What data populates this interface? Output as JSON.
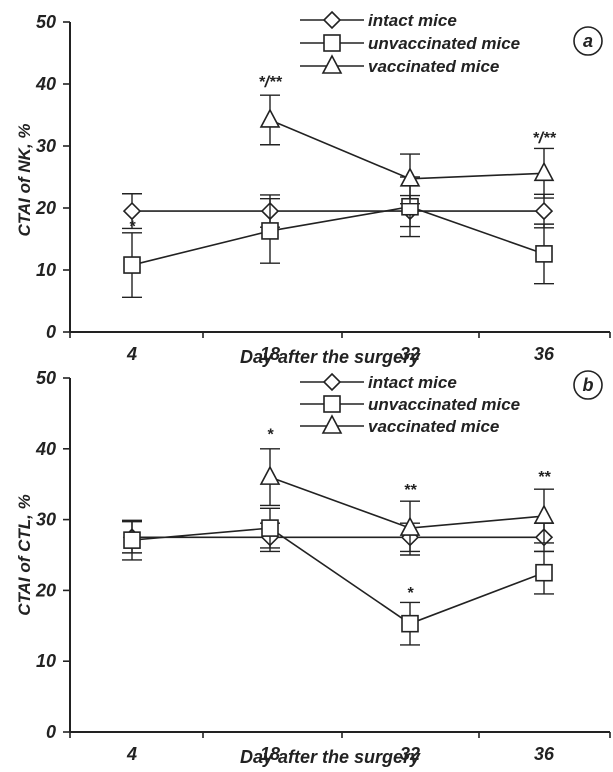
{
  "chart_data": [
    {
      "type": "line",
      "panel_label": "a",
      "ylabel": "CTAI of NK, %",
      "xlabel": "Day after the surgery",
      "categories": [
        "4",
        "18",
        "32",
        "36"
      ],
      "ylim": [
        0,
        50
      ],
      "yticks": [
        "0",
        "10",
        "20",
        "30",
        "40",
        "50"
      ],
      "grid": false,
      "legend": "top-right",
      "series": [
        {
          "name": "intact mice",
          "marker": "diamond",
          "values": [
            19.5,
            19.5,
            19.5,
            19.5
          ],
          "err": [
            2.8,
            2.6,
            2.5,
            2.7
          ]
        },
        {
          "name": "unvaccinated mice",
          "marker": "square",
          "values": [
            10.8,
            16.3,
            20.2,
            12.6
          ],
          "err": [
            5.2,
            5.2,
            4.8,
            4.8
          ]
        },
        {
          "name": "vaccinated mice",
          "marker": "triangle",
          "values": [
            null,
            34.2,
            24.7,
            25.6
          ],
          "err": [
            null,
            4.0,
            4.0,
            4.0
          ]
        }
      ],
      "annotations": [
        {
          "x": "4",
          "y": 16.2,
          "text": "*"
        },
        {
          "x": "18",
          "y": 39.5,
          "text": "*/**"
        },
        {
          "x": "36",
          "y": 30.5,
          "text": "*/**"
        }
      ]
    },
    {
      "type": "line",
      "panel_label": "b",
      "ylabel": "CTAI of CTL, %",
      "xlabel": "Day after the surgery",
      "categories": [
        "4",
        "18",
        "32",
        "36"
      ],
      "ylim": [
        0,
        50
      ],
      "yticks": [
        "0",
        "10",
        "20",
        "30",
        "40",
        "50"
      ],
      "grid": false,
      "legend": "top-right",
      "series": [
        {
          "name": "intact mice",
          "marker": "diamond",
          "values": [
            27.5,
            27.5,
            27.5,
            27.5
          ],
          "err": [
            2.2,
            2.0,
            2.0,
            2.0
          ]
        },
        {
          "name": "unvaccinated mice",
          "marker": "square",
          "values": [
            27.1,
            28.8,
            15.3,
            22.5
          ],
          "err": [
            2.8,
            2.8,
            3.0,
            3.0
          ]
        },
        {
          "name": "vaccinated mice",
          "marker": "triangle",
          "values": [
            null,
            36.0,
            28.8,
            30.5
          ],
          "err": [
            null,
            4.0,
            3.8,
            3.8
          ]
        }
      ],
      "annotations": [
        {
          "x": "18",
          "y": 41.3,
          "text": "*"
        },
        {
          "x": "32",
          "y": 33.5,
          "text": "**"
        },
        {
          "x": "32",
          "y": 18.9,
          "text": "*"
        },
        {
          "x": "36",
          "y": 35.3,
          "text": "**"
        }
      ]
    }
  ]
}
